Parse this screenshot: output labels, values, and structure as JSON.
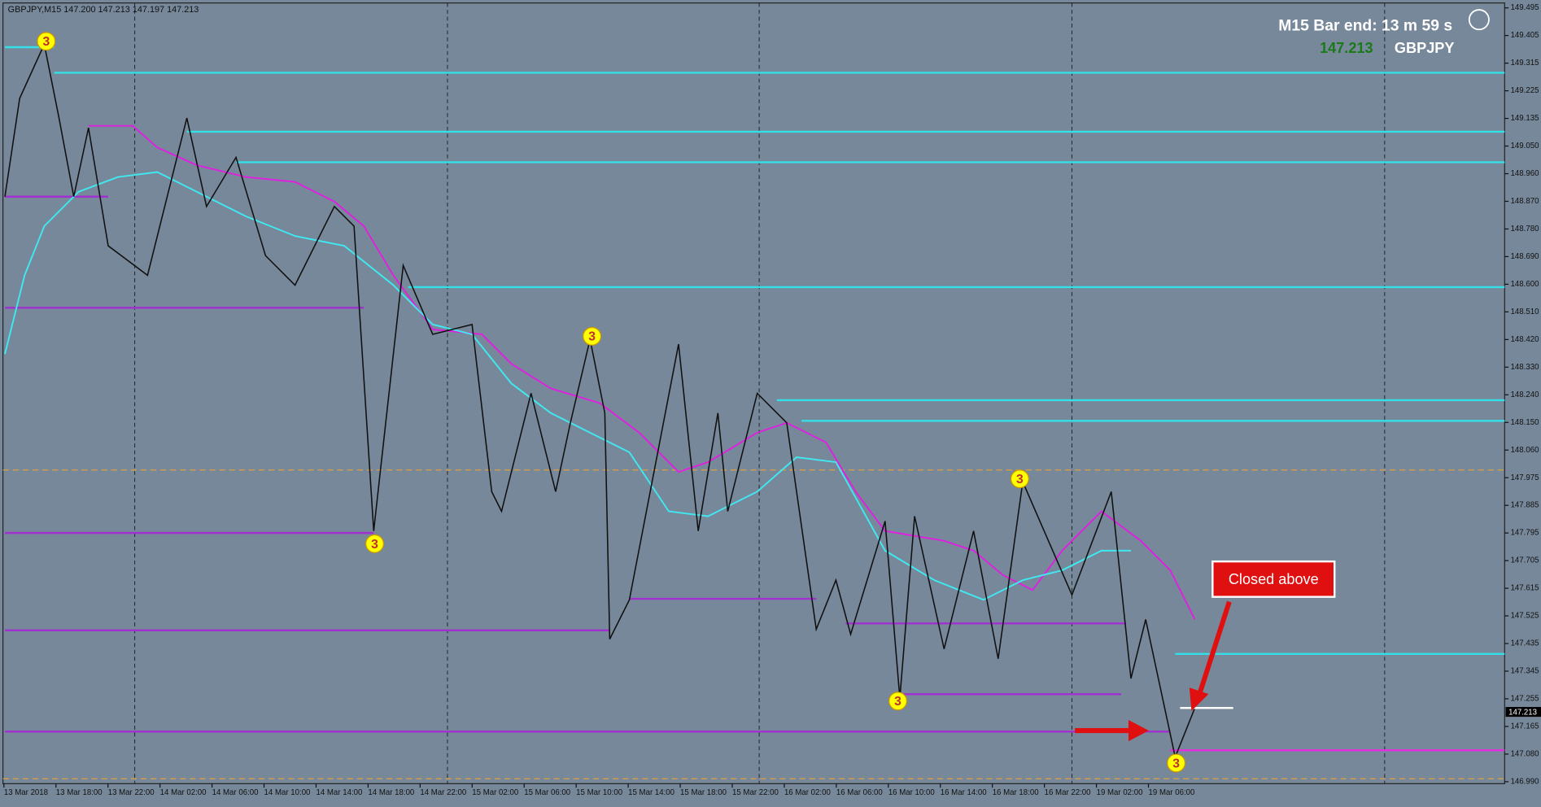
{
  "header": {
    "symbol_info": "GBPJPY,M15  147.200 147.213 147.197 147.213"
  },
  "overlay": {
    "bar_end": "M15 Bar end: 13 m 59 s",
    "price": "147.213",
    "symbol": "GBPJPY"
  },
  "price_axis": {
    "labels": [
      "149.495",
      "149.405",
      "149.315",
      "149.225",
      "149.135",
      "149.050",
      "148.960",
      "148.870",
      "148.780",
      "148.690",
      "148.600",
      "148.510",
      "148.420",
      "148.330",
      "148.240",
      "148.150",
      "148.060",
      "147.975",
      "147.885",
      "147.795",
      "147.705",
      "147.615",
      "147.525",
      "147.435",
      "147.345",
      "147.255",
      "147.165",
      "147.080",
      "146.990"
    ],
    "current_price": "147.213"
  },
  "time_axis": {
    "labels": [
      "13 Mar 2018",
      "13 Mar 18:00",
      "13 Mar 22:00",
      "14 Mar 02:00",
      "14 Mar 06:00",
      "14 Mar 10:00",
      "14 Mar 14:00",
      "14 Mar 18:00",
      "14 Mar 22:00",
      "15 Mar 02:00",
      "15 Mar 06:00",
      "15 Mar 10:00",
      "15 Mar 14:00",
      "15 Mar 18:00",
      "15 Mar 22:00",
      "16 Mar 02:00",
      "16 Mar 06:00",
      "16 Mar 10:00",
      "16 Mar 14:00",
      "16 Mar 18:00",
      "16 Mar 22:00",
      "19 Mar 02:00",
      "19 Mar 06:00"
    ]
  },
  "wave_markers": [
    "3",
    "3",
    "3",
    "3",
    "3",
    "3"
  ],
  "annotation": "Closed above"
}
